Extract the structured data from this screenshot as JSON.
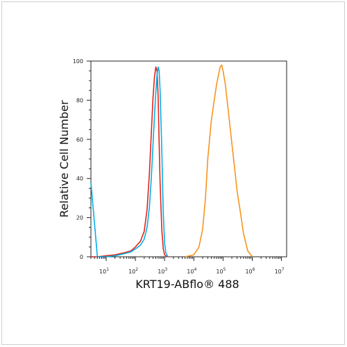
{
  "chart_data": {
    "type": "line",
    "title": "",
    "xlabel": "KRT19-ABflo® 488",
    "ylabel": "Relative Cell Number",
    "x_scale": "log",
    "xlim": [
      3,
      15000000.0
    ],
    "ylim": [
      0,
      100
    ],
    "x_ticks": [
      {
        "value": 10,
        "label": "10",
        "exp": "1"
      },
      {
        "value": 100,
        "label": "10",
        "exp": "2"
      },
      {
        "value": 1000,
        "label": "10",
        "exp": "3"
      },
      {
        "value": 10000,
        "label": "10",
        "exp": "4"
      },
      {
        "value": 100000,
        "label": "10",
        "exp": "5"
      },
      {
        "value": 1000000,
        "label": "10",
        "exp": "6"
      },
      {
        "value": 10000000,
        "label": "10",
        "exp": "7"
      }
    ],
    "y_ticks": [
      0,
      20,
      40,
      60,
      80,
      100
    ],
    "grid": false,
    "legend": "none",
    "series": [
      {
        "color": "#e2231a",
        "x": [
          3,
          5,
          10,
          20,
          40,
          70,
          100,
          150,
          200,
          250,
          300,
          350,
          400,
          450,
          500,
          550,
          600,
          650,
          700,
          800,
          900,
          1000,
          1200
        ],
        "y": [
          0,
          0,
          0.5,
          1,
          2,
          3,
          5,
          8,
          13,
          24,
          42,
          63,
          81,
          92,
          97,
          95,
          82,
          58,
          38,
          14,
          4,
          1,
          0
        ]
      },
      {
        "color": "#00b0e8",
        "x": [
          3,
          5,
          10,
          20,
          40,
          70,
          100,
          150,
          200,
          250,
          300,
          350,
          400,
          450,
          500,
          550,
          600,
          650,
          700,
          800,
          900,
          1000,
          1100,
          1300
        ],
        "y": [
          38,
          0,
          0,
          0.5,
          1.5,
          2.5,
          4,
          6,
          9,
          15,
          25,
          40,
          57,
          72,
          84,
          93,
          97,
          95,
          85,
          55,
          22,
          7,
          2,
          0
        ]
      },
      {
        "color": "#f7931e",
        "x": [
          5000,
          10000,
          15000,
          20000,
          25000,
          30000,
          40000,
          50000,
          60000,
          70000,
          80000,
          90000,
          100000,
          120000,
          150000,
          200000,
          250000,
          300000,
          400000,
          500000,
          700000,
          1000000
        ],
        "y": [
          0,
          1,
          5,
          14,
          30,
          50,
          70,
          80,
          88,
          93,
          97,
          98,
          95,
          88,
          75,
          58,
          45,
          34,
          22,
          12,
          3,
          0
        ]
      }
    ]
  }
}
